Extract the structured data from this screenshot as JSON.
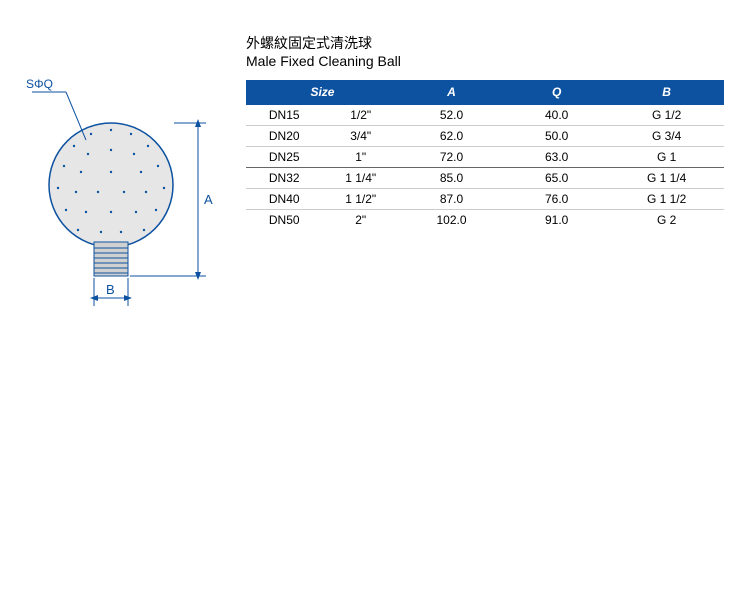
{
  "title": {
    "zh": "外螺紋固定式清洗球",
    "en": "Male Fixed  Cleaning Ball"
  },
  "diagram": {
    "labels": {
      "sq": "SΦQ",
      "a": "A",
      "b": "B"
    },
    "colors": {
      "line": "#0d52a0",
      "ball_fill": "#e6e6e6",
      "thread_fill": "#d0d0d0",
      "dot": "#0d52a0"
    }
  },
  "table": {
    "header_bg": "#0d52a0",
    "header_fg": "#ffffff",
    "columns": [
      "Size",
      "A",
      "Q",
      "B"
    ],
    "groups": [
      {
        "rows": [
          {
            "size_dn": "DN15",
            "size_in": "1/2\"",
            "a": "52.0",
            "q": "40.0",
            "b": "G 1/2"
          },
          {
            "size_dn": "DN20",
            "size_in": "3/4\"",
            "a": "62.0",
            "q": "50.0",
            "b": "G 3/4"
          },
          {
            "size_dn": "DN25",
            "size_in": "1\"",
            "a": "72.0",
            "q": "63.0",
            "b": "G 1"
          }
        ]
      },
      {
        "rows": [
          {
            "size_dn": "DN32",
            "size_in": "1 1/4\"",
            "a": "85.0",
            "q": "65.0",
            "b": "G 1 1/4"
          },
          {
            "size_dn": "DN40",
            "size_in": "1 1/2\"",
            "a": "87.0",
            "q": "76.0",
            "b": "G 1 1/2"
          },
          {
            "size_dn": "DN50",
            "size_in": "2\"",
            "a": "102.0",
            "q": "91.0",
            "b": "G 2"
          }
        ]
      }
    ]
  }
}
